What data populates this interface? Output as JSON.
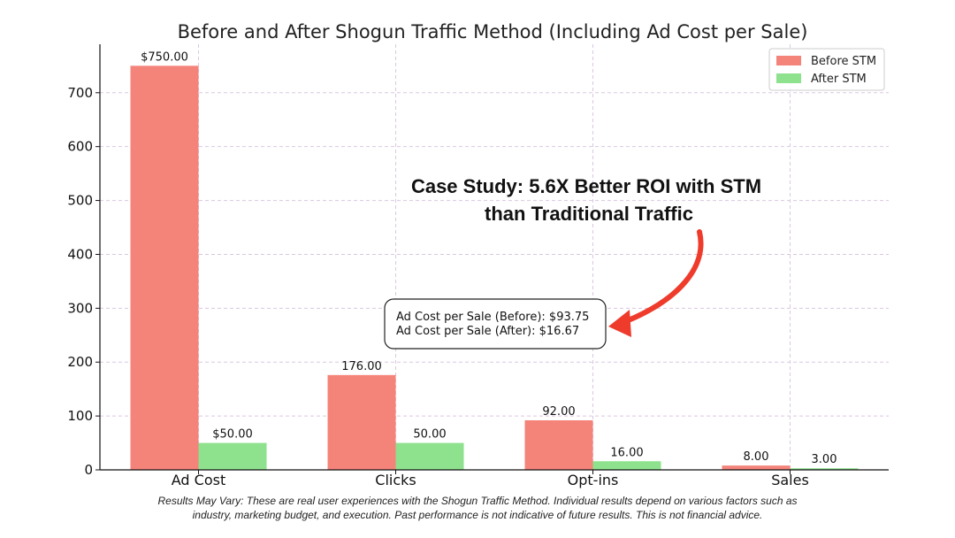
{
  "chart_data": {
    "type": "bar",
    "title": "Before and After Shogun Traffic Method (Including Ad Cost per Sale)",
    "categories": [
      "Ad Cost",
      "Clicks",
      "Opt-ins",
      "Sales"
    ],
    "series": [
      {
        "name": "Before STM",
        "color": "#f4837a",
        "values": [
          750,
          176,
          92,
          8
        ],
        "labels": [
          "$750.00",
          "176.00",
          "92.00",
          "8.00"
        ]
      },
      {
        "name": "After STM",
        "color": "#8ee28e",
        "values": [
          50,
          50,
          16,
          3
        ],
        "labels": [
          "$50.00",
          "50.00",
          "16.00",
          "3.00"
        ]
      }
    ],
    "ylim": [
      0,
      790
    ],
    "yticks": [
      0,
      100,
      200,
      300,
      400,
      500,
      600,
      700
    ],
    "grid": true,
    "legend_position": "top-right",
    "annotation_box": [
      "Ad Cost per Sale (Before): $93.75",
      "Ad Cost per Sale (After): $16.67"
    ],
    "callout": [
      "Case Study: 5.6X Better ROI with STM",
      "than Traditional Traffic"
    ],
    "arrow_color": "#ee3b2b"
  },
  "disclaimer": [
    "Results May Vary: These are real user experiences with the Shogun Traffic Method. Individual results depend on various factors such as",
    "industry, marketing budget, and execution. Past performance is not indicative of future results. This is not financial advice."
  ]
}
